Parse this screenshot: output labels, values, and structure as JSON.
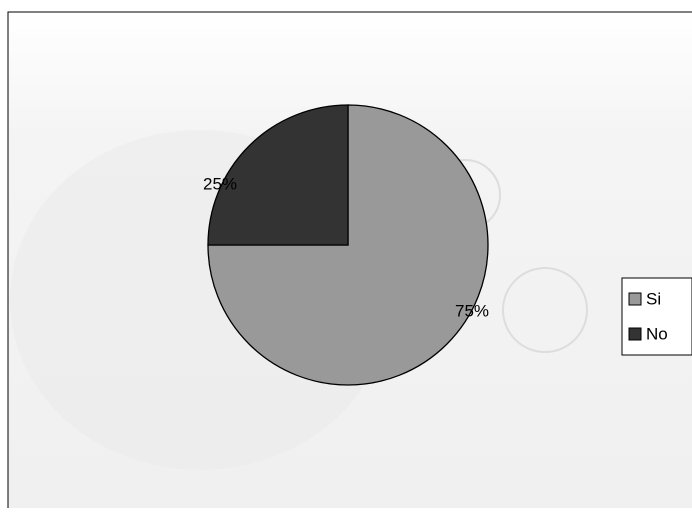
{
  "chart_data": {
    "type": "pie",
    "categories": [
      "Si",
      "No"
    ],
    "values": [
      75,
      25
    ],
    "value_labels": [
      "75%",
      "25%"
    ],
    "colors": [
      "#999999",
      "#333333"
    ],
    "legend": "right"
  }
}
